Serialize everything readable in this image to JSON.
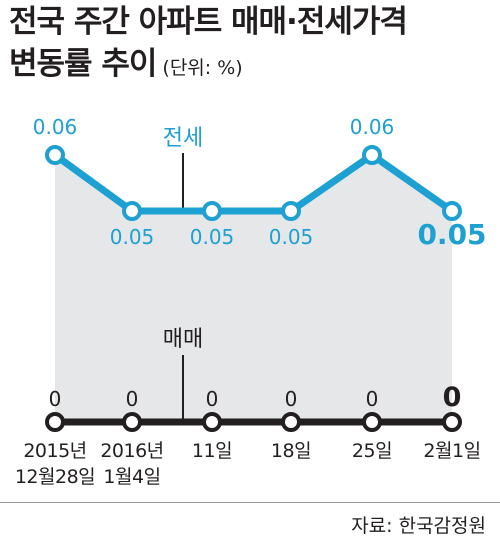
{
  "title_line1": "전국 주간 아파트 매매·전세가격",
  "title_line2": "변동률 추이",
  "unit": "(단위: %)",
  "source": "자료: 한국감정원",
  "colors": {
    "jeonse": "#1da0d2",
    "maemae": "#231f20",
    "area": "#e6e7e8",
    "text": "#231f20"
  },
  "chart_data": {
    "type": "line",
    "categories": [
      [
        "2015년",
        "12월28일"
      ],
      [
        "2016년",
        "1월4일"
      ],
      [
        "11일"
      ],
      [
        "18일"
      ],
      [
        "25일"
      ],
      [
        "2월1일"
      ]
    ],
    "series": [
      {
        "name": "전세",
        "values": [
          0.06,
          0.05,
          0.05,
          0.05,
          0.06,
          0.05
        ],
        "labels": [
          "0.06",
          "0.05",
          "0.05",
          "0.05",
          "0.06",
          "0.05"
        ]
      },
      {
        "name": "매매",
        "values": [
          0,
          0,
          0,
          0,
          0,
          0
        ],
        "labels": [
          "0",
          "0",
          "0",
          "0",
          "0",
          "0"
        ]
      }
    ]
  }
}
